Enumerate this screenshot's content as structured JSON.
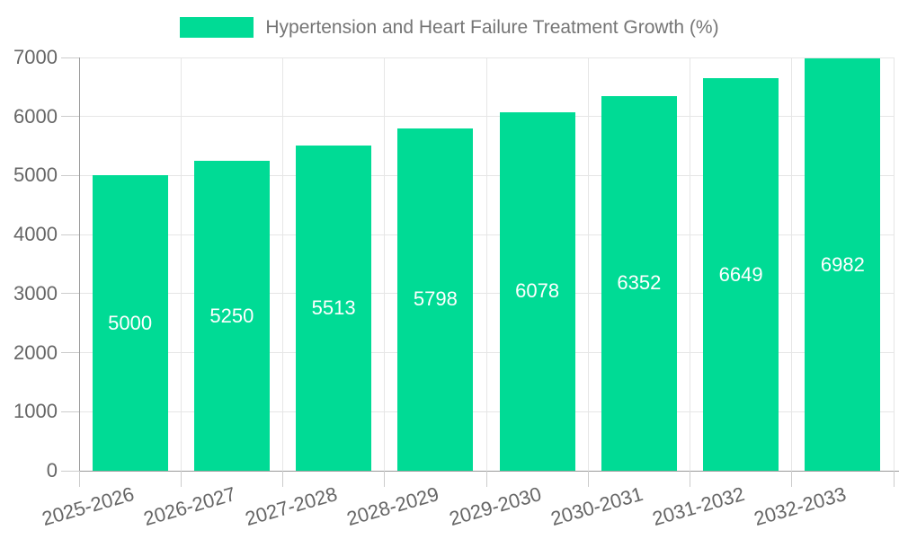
{
  "chart_data": {
    "type": "bar",
    "title": "Hypertension and Heart Failure Treatment Growth (%)",
    "legend_position": "top",
    "categories": [
      "2025-2026",
      "2026-2027",
      "2027-2028",
      "2028-2029",
      "2029-2030",
      "2030-2031",
      "2031-2032",
      "2032-2033"
    ],
    "values": [
      5000,
      5250,
      5513,
      5798,
      6078,
      6352,
      6649,
      6982
    ],
    "value_labels": [
      "5000",
      "5250",
      "5513",
      "5798",
      "6078",
      "6352",
      "6649",
      "6982"
    ],
    "xlabel": "",
    "ylabel": "",
    "ylim": [
      0,
      7000
    ],
    "ytick_values": [
      0,
      1000,
      2000,
      3000,
      4000,
      5000,
      6000,
      7000
    ],
    "ytick_labels": [
      "0",
      "1000",
      "2000",
      "3000",
      "4000",
      "5000",
      "6000",
      "7000"
    ],
    "grid": true,
    "colors": {
      "bar": "#00DB95",
      "value_label": "#ffffff",
      "axis_label": "#666666",
      "legend_text": "#757575",
      "gridline": "#e6e6e6",
      "axis_line": "#9a9a9a",
      "tick": "#cccccc",
      "background": "#ffffff"
    }
  }
}
